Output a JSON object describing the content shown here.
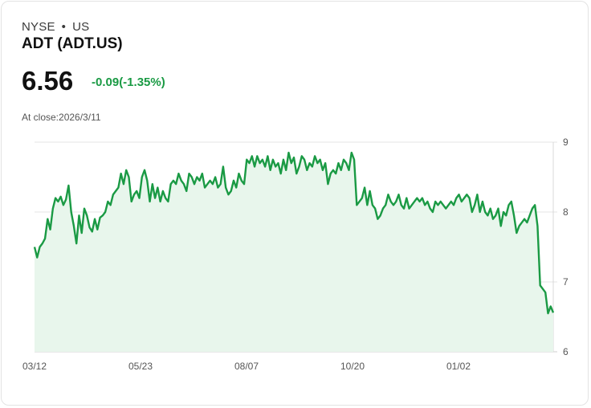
{
  "header": {
    "exchange": "NYSE",
    "separator": "•",
    "country": "US",
    "title": "ADT (ADT.US)",
    "price": "6.56",
    "change": "-0.09(-1.35%)",
    "close_label": "At close:",
    "close_date": "2026/3/11"
  },
  "colors": {
    "line": "#1a9a44",
    "fill": "#e8f6ec",
    "grid": "#e6e6e6"
  },
  "chart_data": {
    "type": "area",
    "title": "",
    "xlabel": "",
    "ylabel": "",
    "ylim": [
      6,
      9
    ],
    "yticks": [
      9,
      8,
      7,
      6
    ],
    "xticks": [
      "03/12",
      "05/23",
      "08/07",
      "10/20",
      "01/02"
    ],
    "x_range": [
      "2025-03-12",
      "2026-03-11"
    ],
    "series": [
      {
        "values": [
          7.5,
          7.35,
          7.5,
          7.55,
          7.62,
          7.9,
          7.75,
          8.05,
          8.2,
          8.15,
          8.22,
          8.1,
          8.18,
          8.38,
          8.0,
          7.8,
          7.55,
          7.95,
          7.7,
          8.05,
          7.95,
          7.78,
          7.72,
          7.9,
          7.75,
          7.92,
          7.95,
          8.0,
          8.15,
          8.1,
          8.25,
          8.3,
          8.35,
          8.55,
          8.4,
          8.6,
          8.5,
          8.15,
          8.25,
          8.3,
          8.2,
          8.5,
          8.6,
          8.45,
          8.15,
          8.4,
          8.2,
          8.35,
          8.15,
          8.3,
          8.2,
          8.15,
          8.4,
          8.45,
          8.4,
          8.55,
          8.45,
          8.4,
          8.3,
          8.55,
          8.5,
          8.4,
          8.5,
          8.45,
          8.55,
          8.35,
          8.4,
          8.45,
          8.4,
          8.5,
          8.35,
          8.4,
          8.65,
          8.35,
          8.25,
          8.3,
          8.45,
          8.35,
          8.55,
          8.45,
          8.4,
          8.75,
          8.7,
          8.8,
          8.65,
          8.8,
          8.7,
          8.75,
          8.65,
          8.8,
          8.6,
          8.75,
          8.65,
          8.7,
          8.55,
          8.75,
          8.6,
          8.85,
          8.7,
          8.78,
          8.55,
          8.65,
          8.8,
          8.75,
          8.6,
          8.7,
          8.65,
          8.8,
          8.7,
          8.75,
          8.6,
          8.7,
          8.4,
          8.55,
          8.6,
          8.55,
          8.7,
          8.6,
          8.75,
          8.7,
          8.6,
          8.85,
          8.75,
          8.1,
          8.15,
          8.2,
          8.35,
          8.1,
          8.3,
          8.1,
          8.05,
          7.9,
          7.95,
          8.05,
          8.1,
          8.25,
          8.15,
          8.1,
          8.15,
          8.25,
          8.1,
          8.05,
          8.2,
          8.05,
          8.1,
          8.15,
          8.2,
          8.15,
          8.2,
          8.1,
          8.15,
          8.05,
          8.0,
          8.15,
          8.1,
          8.15,
          8.1,
          8.05,
          8.1,
          8.15,
          8.1,
          8.2,
          8.25,
          8.15,
          8.2,
          8.25,
          8.2,
          8.0,
          8.1,
          8.25,
          8.0,
          8.15,
          8.0,
          7.95,
          8.05,
          7.9,
          7.95,
          8.05,
          7.8,
          8.0,
          7.95,
          8.1,
          8.15,
          7.95,
          7.7,
          7.8,
          7.85,
          7.9,
          7.85,
          7.95,
          8.05,
          8.1,
          7.8,
          6.95,
          6.9,
          6.85,
          6.55,
          6.65,
          6.56
        ]
      }
    ],
    "grid": true,
    "legend": "none"
  }
}
